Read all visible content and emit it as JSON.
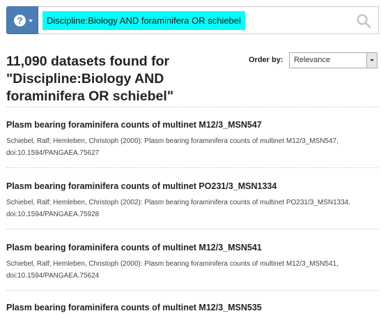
{
  "search": {
    "help_icon": "question-mark",
    "query": "Discipline:Biology AND foraminifera OR schiebel",
    "search_icon": "magnifier"
  },
  "results_header": {
    "title": "11,090 datasets found for \"Discipline:Biology AND foraminifera OR schiebel\"",
    "order_label": "Order by:",
    "order_value": "Relevance"
  },
  "results": [
    {
      "title": "Plasm bearing foraminifera counts of multinet M12/3_MSN547",
      "citation": "Schiebel, Ralf; Hemleben, Christoph (2000): Plasm bearing foraminifera counts of multinet M12/3_MSN547, doi:10.1594/PANGAEA.75627"
    },
    {
      "title": "Plasm bearing foraminifera counts of multinet PO231/3_MSN1334",
      "citation": "Schiebel, Ralf; Hemleben, Christoph (2002): Plasm bearing foraminifera counts of multinet PO231/3_MSN1334, doi:10.1594/PANGAEA.75928"
    },
    {
      "title": "Plasm bearing foraminifera counts of multinet M12/3_MSN541",
      "citation": "Schiebel, Ralf; Hemleben, Christoph (2000): Plasm bearing foraminifera counts of multinet M12/3_MSN541, doi:10.1594/PANGAEA.75624"
    },
    {
      "title": "Plasm bearing foraminifera counts of multinet M12/3_MSN535",
      "citation": ""
    }
  ],
  "colors": {
    "accent": "#4a7eb5",
    "highlight": "#00ffff"
  }
}
